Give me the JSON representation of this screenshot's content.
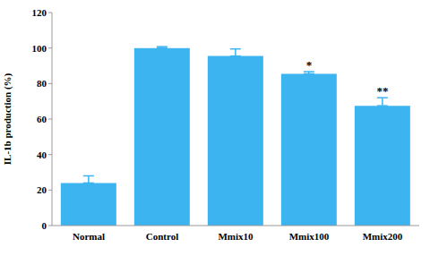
{
  "chart_data": {
    "type": "bar",
    "y_label": "IL-1b production (%)",
    "categories": [
      "Normal",
      "Control",
      "Mmix10",
      "Mmix100",
      "Mmix200"
    ],
    "values": [
      24,
      100,
      95.5,
      85.5,
      67.5
    ],
    "errors": [
      4,
      0.8,
      4,
      1.2,
      4.5
    ],
    "color": "#3cb4f0",
    "ylim": [
      0,
      120
    ],
    "yticks": [
      0,
      20,
      40,
      60,
      80,
      100,
      120
    ],
    "grid": false,
    "annotations": [
      {
        "category": "Mmix100",
        "text": "*"
      },
      {
        "category": "Mmix200",
        "text": "**"
      }
    ]
  }
}
